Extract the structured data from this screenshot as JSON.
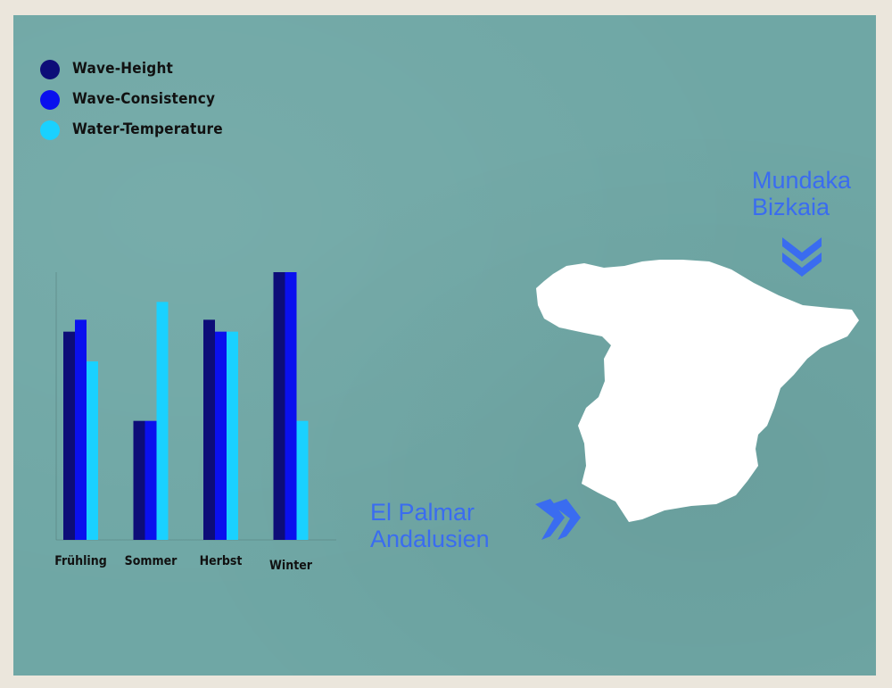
{
  "legend": [
    {
      "label": "Wave-Height",
      "color": "#0d0d78"
    },
    {
      "label": "Wave-Consistency",
      "color": "#0a10ee"
    },
    {
      "label": "Water-Temperature",
      "color": "#1ad1ff"
    }
  ],
  "chart_data": {
    "type": "bar",
    "categories": [
      "Frühling",
      "Sommer",
      "Herbst",
      "Winter"
    ],
    "series": [
      {
        "name": "Wave-Height",
        "values": [
          70,
          40,
          74,
          90
        ],
        "color": "#0d0d78"
      },
      {
        "name": "Wave-Consistency",
        "values": [
          74,
          40,
          70,
          90
        ],
        "color": "#0a10ee"
      },
      {
        "name": "Water-Temperature",
        "values": [
          60,
          80,
          70,
          40
        ],
        "color": "#1ad1ff"
      }
    ],
    "ylim": [
      0,
      90
    ],
    "legend_position": "top-left"
  },
  "map": {
    "places": [
      {
        "line1": "Mundaka",
        "line2": "Bizkaia"
      },
      {
        "line1": "El Palmar",
        "line2": "Andalusien"
      }
    ],
    "marker_color": "#3a6cf0",
    "land_color": "#ffffff"
  }
}
